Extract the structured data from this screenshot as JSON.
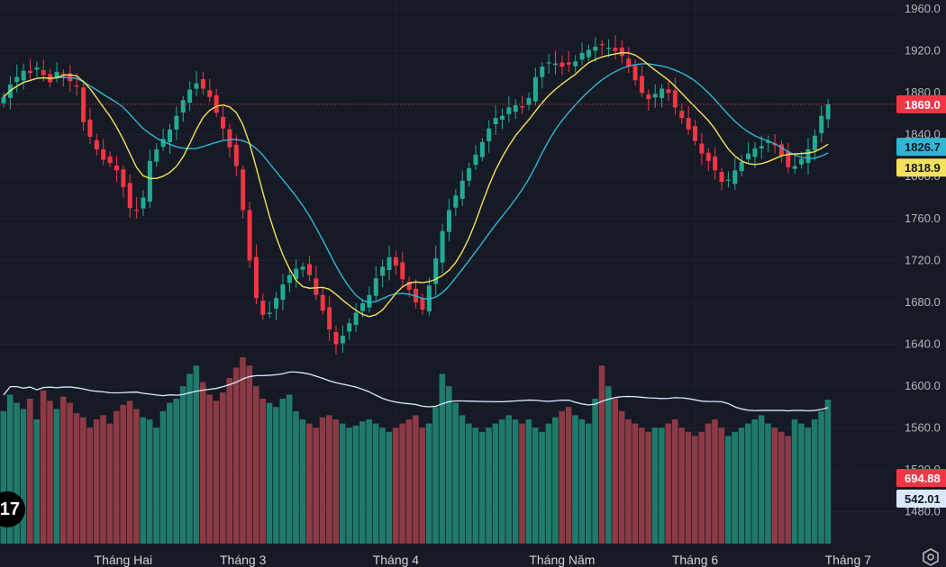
{
  "colors": {
    "background": "#161a25",
    "up": "#22ab94",
    "down": "#f23645",
    "up_volume": "#1f7a6c",
    "down_volume": "#8c3a45",
    "ma_fast": "#f5e15a",
    "ma_slow": "#2fb6d3",
    "volume_ma": "#dbe8ff",
    "last_price_line": "#f23645"
  },
  "logo": {
    "text": "17"
  },
  "icons": {
    "settings": "settings-hexagon-icon"
  },
  "labels": {
    "last_price": "1869.0",
    "ma_slow": "1826.7",
    "ma_fast": "1818.9",
    "volume": "694.88",
    "volume_ma": "542.01"
  },
  "chart_data": {
    "type": "candlestick",
    "price_axis": {
      "ticks": [
        "1960.0",
        "1920.0",
        "1880.0",
        "1840.0",
        "1800.0",
        "1760.0",
        "1720.0",
        "1680.0",
        "1640.0",
        "1600.0",
        "1560.0",
        "1520.0",
        "1480.0"
      ],
      "range": [
        1460,
        1970
      ]
    },
    "time_axis": {
      "labels": [
        "Tháng Hai",
        "Tháng 3",
        "Tháng 4",
        "Tháng Năm",
        "Tháng 6",
        "Tháng 7"
      ],
      "label_bar_index": [
        18,
        36,
        59,
        84,
        104,
        127
      ]
    },
    "last_price": 1869.0,
    "indicators": [
      {
        "name": "MA fast",
        "last": 1818.9
      },
      {
        "name": "MA slow",
        "last": 1826.7
      }
    ],
    "volume": {
      "last": 694.88,
      "ma_last": 542.01
    },
    "close": [
      1876,
      1888,
      1895,
      1901,
      1899,
      1904,
      1897,
      1890,
      1900,
      1897,
      1891,
      1886,
      1852,
      1838,
      1826,
      1816,
      1813,
      1806,
      1790,
      1770,
      1768,
      1780,
      1815,
      1826,
      1836,
      1845,
      1858,
      1873,
      1883,
      1889,
      1884,
      1876,
      1861,
      1846,
      1828,
      1810,
      1768,
      1720,
      1684,
      1668,
      1670,
      1684,
      1697,
      1706,
      1712,
      1714,
      1706,
      1687,
      1672,
      1654,
      1640,
      1648,
      1660,
      1670,
      1679,
      1687,
      1703,
      1714,
      1723,
      1715,
      1702,
      1692,
      1680,
      1673,
      1696,
      1722,
      1748,
      1768,
      1782,
      1796,
      1808,
      1821,
      1833,
      1846,
      1856,
      1858,
      1866,
      1868,
      1866,
      1875,
      1895,
      1905,
      1909,
      1908,
      1905,
      1907,
      1910,
      1918,
      1921,
      1924,
      1926,
      1923,
      1920,
      1915,
      1905,
      1892,
      1880,
      1874,
      1879,
      1884,
      1880,
      1866,
      1856,
      1845,
      1834,
      1822,
      1815,
      1806,
      1795,
      1797,
      1806,
      1814,
      1822,
      1827,
      1829,
      1834,
      1830,
      1820,
      1809,
      1810,
      1817,
      1826,
      1839,
      1858,
      1869
    ],
    "volume_bars": [
      640,
      720,
      680,
      650,
      700,
      600,
      740,
      690,
      650,
      710,
      680,
      630,
      610,
      560,
      600,
      620,
      580,
      640,
      670,
      690,
      650,
      610,
      600,
      560,
      640,
      680,
      700,
      760,
      820,
      860,
      780,
      720,
      690,
      730,
      800,
      850,
      900,
      860,
      760,
      700,
      680,
      660,
      700,
      720,
      640,
      600,
      580,
      560,
      610,
      620,
      600,
      580,
      560,
      570,
      590,
      600,
      580,
      560,
      540,
      560,
      580,
      600,
      620,
      560,
      580,
      660,
      820,
      760,
      680,
      620,
      580,
      560,
      540,
      560,
      580,
      600,
      620,
      600,
      580,
      600,
      560,
      540,
      580,
      610,
      640,
      660,
      620,
      600,
      580,
      700,
      860,
      760,
      700,
      640,
      600,
      580,
      560,
      540,
      560,
      560,
      580,
      600,
      560,
      540,
      520,
      540,
      580,
      600,
      560,
      520,
      540,
      560,
      580,
      600,
      620,
      580,
      560,
      540,
      520,
      600,
      580,
      560,
      600,
      640,
      695
    ]
  }
}
